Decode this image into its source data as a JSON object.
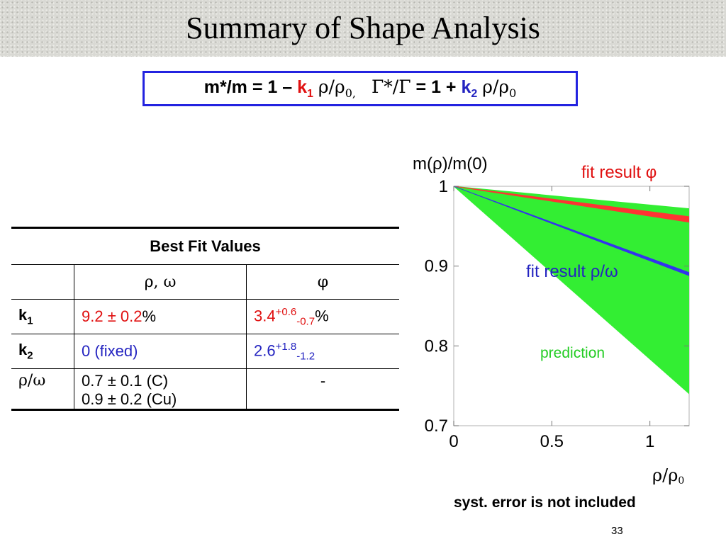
{
  "title": "Summary of Shape Analysis",
  "formula": {
    "left": "m*/m",
    "eq1": "= 1 –",
    "k1": "k",
    "k1_sub": "1",
    "rho1": "ρ/ρ",
    "rho1_sub": "0,",
    "gamma": "Γ*/Γ",
    "eq2": "= 1 +",
    "k2": "k",
    "k2_sub": "2",
    "rho2": "ρ/ρ",
    "rho2_sub": "0"
  },
  "table": {
    "title": "Best Fit Values",
    "headers": [
      "",
      "ρ, ω",
      "φ"
    ],
    "rows": [
      {
        "label": "k",
        "label_sub": "1",
        "rho_omega": "9.2 ± 0.2",
        "rho_omega_unit": "%",
        "phi": "3.4",
        "phi_sup": "+0.6",
        "phi_sub": "-0.7",
        "phi_unit": "%"
      },
      {
        "label": "k",
        "label_sub": "2",
        "rho_omega": "0 (fixed)",
        "phi": "2.6",
        "phi_sup": "+1.8",
        "phi_sub": "-1.2"
      },
      {
        "label": "ρ/ω",
        "rho_omega_line1": "0.7 ± 0.1 (C)",
        "rho_omega_line2": "0.9 ± 0.2 (Cu)",
        "phi": "-"
      }
    ]
  },
  "chart_data": {
    "type": "area",
    "ylabel": "m(ρ)/m(0)",
    "xlabel": "ρ/ρ0",
    "xlim": [
      0,
      1.2
    ],
    "ylim": [
      0.7,
      1.0
    ],
    "xticks": [
      "0",
      "0.5",
      "1"
    ],
    "yticks": [
      "1",
      "0.9",
      "0.8",
      "0.7"
    ],
    "series": [
      {
        "name": "prediction",
        "x_end": 1.2,
        "upper_end": 0.972,
        "lower_end": 0.861,
        "color": "#33ee33"
      },
      {
        "name": "prediction",
        "x_end": 1.2,
        "upper_end": 0.882,
        "lower_end": 0.74,
        "color": "#33ee33"
      },
      {
        "name": "fit result φ",
        "x_end": 1.2,
        "upper_end": 0.962,
        "lower_end": 0.955,
        "color": "#ff3333"
      },
      {
        "name": "fit result ρ/ω",
        "x_end": 1.2,
        "upper_end": 0.892,
        "lower_end": 0.888,
        "color": "#3333ee"
      }
    ],
    "labels": {
      "fit_phi": "fit result φ",
      "fit_rho": "fit result ρ/ω",
      "prediction": "prediction"
    }
  },
  "note": "syst. error is not included",
  "page_number": "33"
}
